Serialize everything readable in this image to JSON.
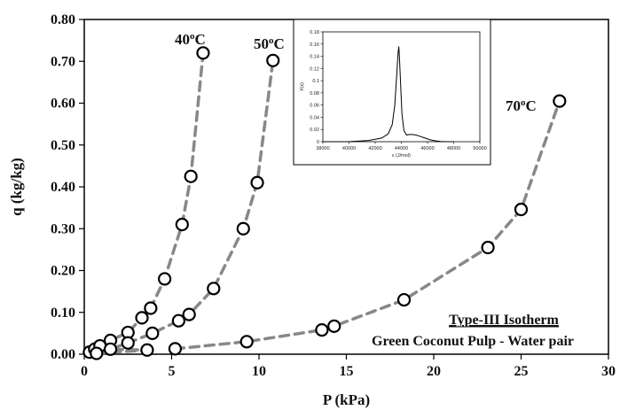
{
  "chart_data": [
    {
      "type": "scatter",
      "xlabel": "P (kPa)",
      "ylabel": "q (kg/kg)",
      "xlim": [
        0,
        30
      ],
      "ylim": [
        0,
        0.8
      ],
      "x_ticks": [
        "0",
        "5",
        "10",
        "15",
        "20",
        "25",
        "30"
      ],
      "y_ticks": [
        "0.00",
        "0.10",
        "0.20",
        "0.30",
        "0.40",
        "0.50",
        "0.60",
        "0.70",
        "0.80"
      ],
      "markers": "open circles",
      "line_style": "dashed grey",
      "series": [
        {
          "name": "40oC",
          "label_base": "40",
          "label_sup": "o",
          "label_unit": "C",
          "x": [
            0.3,
            0.6,
            0.9,
            1.5,
            2.5,
            3.3,
            3.8,
            4.6,
            5.6,
            6.1,
            6.8
          ],
          "y": [
            0.005,
            0.012,
            0.02,
            0.033,
            0.052,
            0.087,
            0.11,
            0.18,
            0.31,
            0.425,
            0.72
          ]
        },
        {
          "name": "50oC",
          "label_base": "50",
          "label_sup": "o",
          "label_unit": "C",
          "x": [
            0.7,
            1.5,
            2.5,
            3.6,
            3.9,
            5.4,
            6.0,
            7.4,
            9.1,
            9.9,
            10.8
          ],
          "y": [
            0.002,
            0.012,
            0.027,
            0.01,
            0.05,
            0.08,
            0.095,
            0.157,
            0.3,
            0.41,
            0.702
          ]
        },
        {
          "name": "70oC",
          "label_base": "70",
          "label_sup": "o",
          "label_unit": "C",
          "x": [
            5.2,
            9.3,
            13.6,
            14.3,
            18.3,
            23.1,
            25.0,
            27.2
          ],
          "y": [
            0.013,
            0.03,
            0.058,
            0.067,
            0.13,
            0.255,
            0.346,
            0.605
          ]
        }
      ],
      "annotations": [
        "Type-III Isotherm",
        "Green Coconut Pulp - Water pair"
      ]
    },
    {
      "type": "line",
      "xlabel": "ε (J/mol)",
      "ylabel": "X(ε)",
      "xlim": [
        38000,
        50000
      ],
      "ylim": [
        0,
        0.18
      ],
      "x_ticks": [
        "38000",
        "40000",
        "42000",
        "44000",
        "46000",
        "48000",
        "50000"
      ],
      "y_ticks": [
        "0",
        "0.02",
        "0.04",
        "0.06",
        "0.08",
        "0.1",
        "0.12",
        "0.14",
        "0.16",
        "0.18"
      ],
      "series": [
        {
          "x": [
            38000,
            40000,
            41500,
            42500,
            43000,
            43300,
            43500,
            43650,
            43750,
            43800,
            43850,
            43950,
            44050,
            44200,
            44400,
            44700,
            45100,
            45400,
            45800,
            46200,
            46600,
            47000,
            47400,
            48000
          ],
          "y": [
            0,
            0,
            0.002,
            0.006,
            0.013,
            0.028,
            0.06,
            0.11,
            0.145,
            0.156,
            0.14,
            0.09,
            0.045,
            0.018,
            0.011,
            0.012,
            0.011,
            0.009,
            0.006,
            0.003,
            0.0015,
            0.0005,
            0,
            0
          ]
        }
      ]
    }
  ]
}
